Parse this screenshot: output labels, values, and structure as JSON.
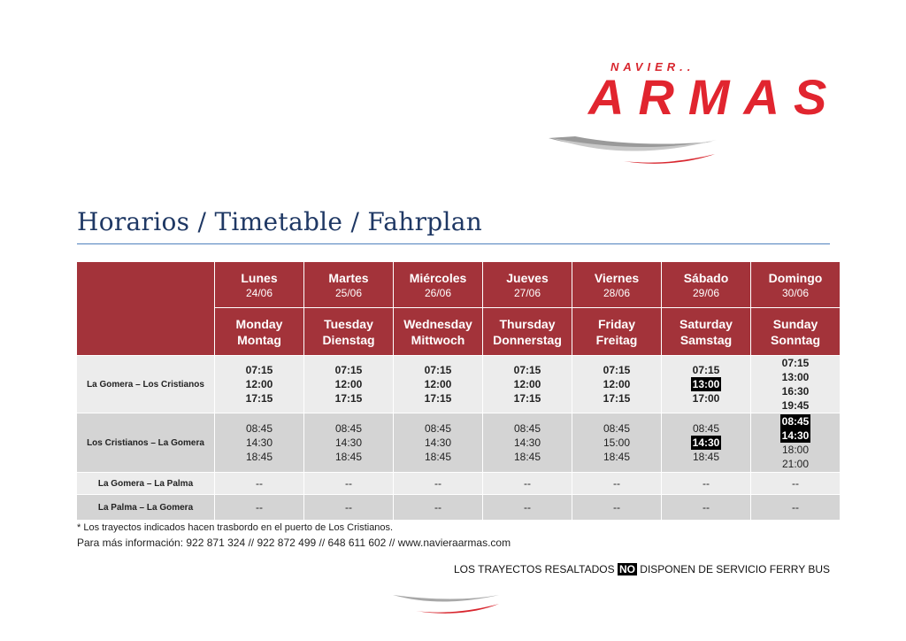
{
  "logo": {
    "small_text": "NAVIER..",
    "big_text": "ARMAS"
  },
  "title": "Horarios / Timetable / Fahrplan",
  "colors": {
    "header_bg": "#a3333a",
    "brand_red": "#e1252f",
    "title_blue": "#1f3864",
    "row_light": "#ececec",
    "row_dark": "#d4d4d4"
  },
  "days": [
    {
      "es": "Lunes",
      "date": "24/06",
      "en": "Monday",
      "de": "Montag"
    },
    {
      "es": "Martes",
      "date": "25/06",
      "en": "Tuesday",
      "de": "Dienstag"
    },
    {
      "es": "Miércoles",
      "date": "26/06",
      "en": "Wednesday",
      "de": "Mittwoch"
    },
    {
      "es": "Jueves",
      "date": "27/06",
      "en": "Thursday",
      "de": "Donnerstag"
    },
    {
      "es": "Viernes",
      "date": "28/06",
      "en": "Friday",
      "de": "Freitag"
    },
    {
      "es": "Sábado",
      "date": "29/06",
      "en": "Saturday",
      "de": "Samstag"
    },
    {
      "es": "Domingo",
      "date": "30/06",
      "en": "Sunday",
      "de": "Sonntag"
    }
  ],
  "routes": [
    {
      "name": "La Gomera – Los Cristianos",
      "times": [
        [
          "07:15",
          "12:00",
          "17:15"
        ],
        [
          "07:15",
          "12:00",
          "17:15"
        ],
        [
          "07:15",
          "12:00",
          "17:15"
        ],
        [
          "07:15",
          "12:00",
          "17:15"
        ],
        [
          "07:15",
          "12:00",
          "17:15"
        ],
        [
          "07:15",
          "13:00",
          "17:00"
        ],
        [
          "07:15",
          "13:00",
          "16:30",
          "19:45"
        ]
      ],
      "highlighted": [
        [],
        [],
        [],
        [],
        [],
        [
          1
        ],
        []
      ]
    },
    {
      "name": "Los Cristianos – La Gomera",
      "times": [
        [
          "08:45",
          "14:30",
          "18:45"
        ],
        [
          "08:45",
          "14:30",
          "18:45"
        ],
        [
          "08:45",
          "14:30",
          "18:45"
        ],
        [
          "08:45",
          "14:30",
          "18:45"
        ],
        [
          "08:45",
          "15:00",
          "18:45"
        ],
        [
          "08:45",
          "14:30",
          "18:45"
        ],
        [
          "08:45",
          "14:30",
          "18:00",
          "21:00"
        ]
      ],
      "highlighted": [
        [],
        [],
        [],
        [],
        [],
        [
          1
        ],
        [
          0,
          1
        ]
      ]
    },
    {
      "name": "La Gomera – La Palma",
      "times": [
        [
          "--"
        ],
        [
          "--"
        ],
        [
          "--"
        ],
        [
          "--"
        ],
        [
          "--"
        ],
        [
          "--"
        ],
        [
          "--"
        ]
      ],
      "highlighted": [
        [],
        [],
        [],
        [],
        [],
        [],
        []
      ]
    },
    {
      "name": "La Palma – La Gomera",
      "times": [
        [
          "--"
        ],
        [
          "--"
        ],
        [
          "--"
        ],
        [
          "--"
        ],
        [
          "--"
        ],
        [
          "--"
        ],
        [
          "--"
        ]
      ],
      "highlighted": [
        [],
        [],
        [],
        [],
        [],
        [],
        []
      ]
    }
  ],
  "footnote": "* Los trayectos indicados hacen trasbordo en el puerto de Los Cristianos.",
  "info": "Para más información: 922 871 324 // 922 872 499 //  648 611 602 // www.navieraarmas.com",
  "notice": {
    "before": "LOS  TRAYECTOS RESALTADOS ",
    "highlight": "NO",
    "after": " DISPONEN DE SERVICIO FERRY BUS"
  }
}
